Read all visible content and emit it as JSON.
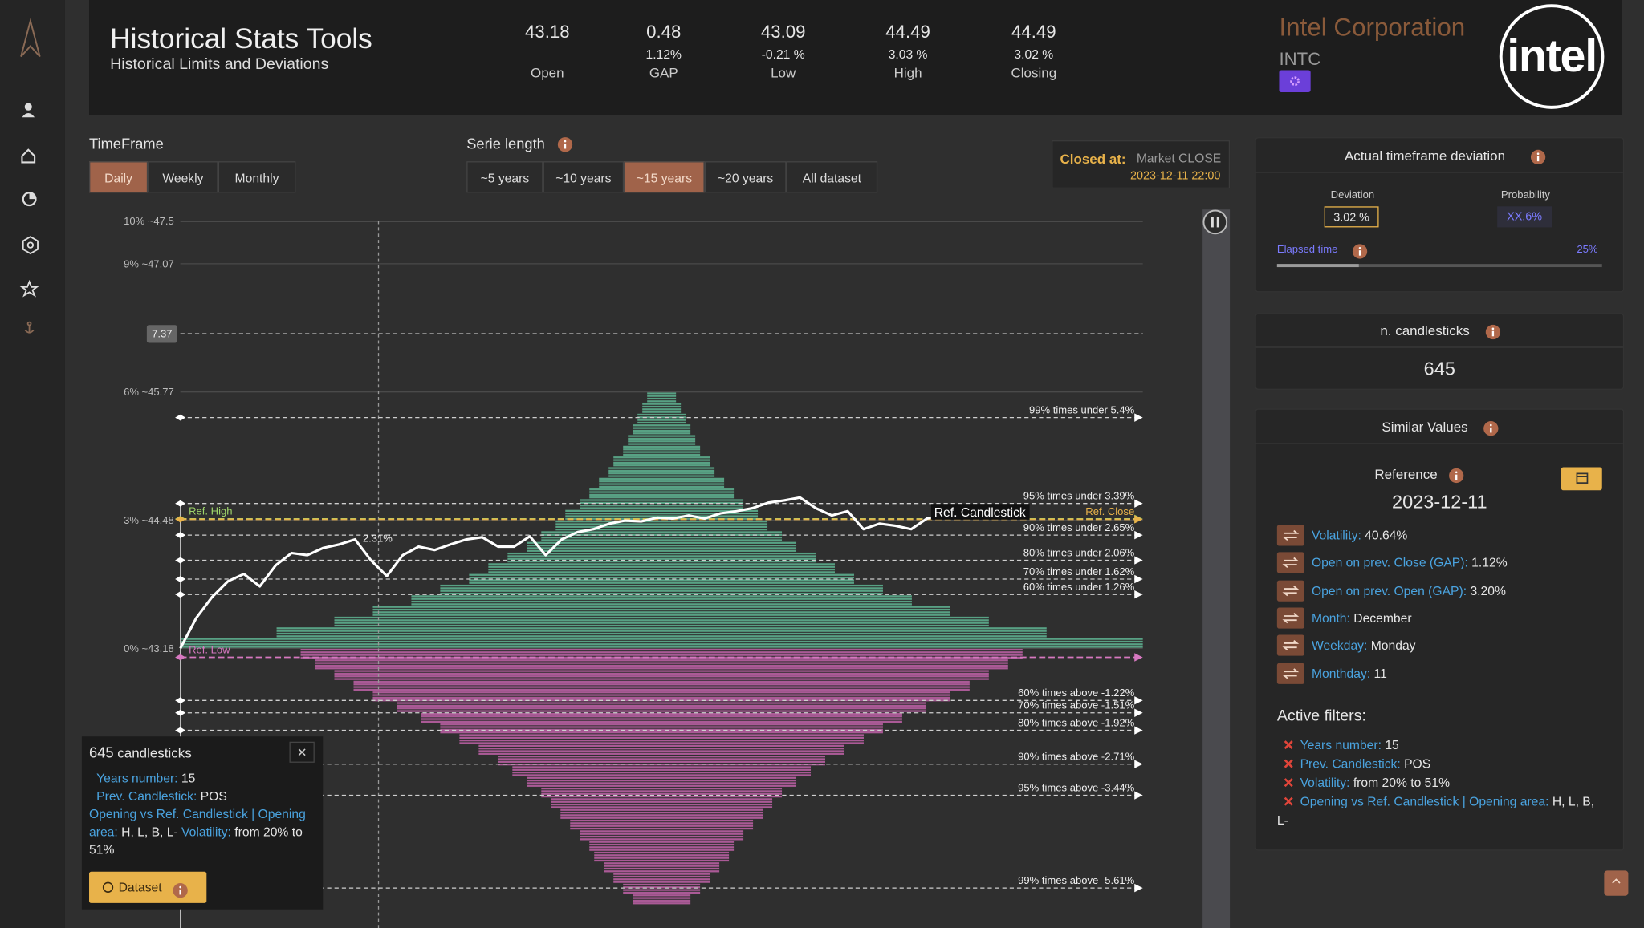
{
  "header": {
    "title": "Historical Stats Tools",
    "subtitle": "Historical Limits and Deviations"
  },
  "stats": [
    {
      "value": "43.18",
      "label": "Open"
    },
    {
      "value": "0.48",
      "change": "1.12%",
      "label": "GAP"
    },
    {
      "value": "43.09",
      "change": "-0.21 %",
      "label": "Low"
    },
    {
      "value": "44.49",
      "change": "3.03 %",
      "label": "High"
    },
    {
      "value": "44.49",
      "change": "3.02 %",
      "label": "Closing"
    }
  ],
  "company": {
    "name": "Intel Corporation",
    "ticker": "INTC",
    "logo": "intel"
  },
  "timeframe": {
    "label": "TimeFrame",
    "options": [
      "Daily",
      "Weekly",
      "Monthly"
    ],
    "active_index": 0
  },
  "serie_length": {
    "label": "Serie length",
    "options": [
      "~5 years",
      "~10 years",
      "~15 years",
      "~20 years",
      "All dataset"
    ],
    "active_index": 2
  },
  "closed": {
    "label": "Closed at:",
    "value": "Market CLOSE",
    "datetime": "2023-12-11 22:00"
  },
  "chart_data": {
    "type": "line",
    "ylim": [
      -6.55,
      10
    ],
    "yticks": [
      {
        "value": 10,
        "label": "10% ~47.5"
      },
      {
        "value": 9,
        "label": "9% ~47.07"
      },
      {
        "value": 6,
        "label": "6% ~45.77"
      },
      {
        "value": 3,
        "label": "3% ~44.48"
      },
      {
        "value": 0,
        "label": "0% ~43.18"
      }
    ],
    "grid": true,
    "cursor": 7.37,
    "line": {
      "color": "#ffffff",
      "values": [
        0,
        0.71,
        1.2,
        1.57,
        1.74,
        1.45,
        1.94,
        2.23,
        2.18,
        2.35,
        2.43,
        2.55,
        2.06,
        1.69,
        2.18,
        2.38,
        2.3,
        2.43,
        2.55,
        2.6,
        2.38,
        2.38,
        2.62,
        2.18,
        2.55,
        2.72,
        2.79,
        2.92,
        2.99,
        2.97,
        3.06,
        3.04,
        3.11,
        3.04,
        3.16,
        3.21,
        3.28,
        3.41,
        3.46,
        3.53,
        3.28,
        3.11,
        3.21,
        2.79,
        2.92,
        2.87,
        2.79,
        3.04,
        3.11,
        3.06,
        3.21,
        3.28,
        3.33
      ]
    },
    "histogram": {
      "xlim": [
        0,
        100
      ],
      "up": {
        "color": "#5fb593",
        "bins": [
          0,
          0.25,
          0.5,
          0.75,
          1,
          1.25,
          1.5,
          1.75,
          2,
          2.25,
          2.5,
          2.75,
          3,
          3.25,
          3.5,
          3.75,
          4,
          4.25,
          4.5,
          4.75,
          5,
          5.25,
          5.5,
          5.75,
          6
        ],
        "counts": [
          100,
          80,
          68,
          60,
          52,
          46,
          40,
          36,
          32,
          28,
          25,
          22,
          20,
          17,
          15,
          13,
          11,
          10,
          8,
          7,
          6,
          5,
          4,
          3
        ]
      },
      "down": {
        "color": "#c062a8",
        "bins": [
          0,
          -0.25,
          -0.5,
          -0.75,
          -1,
          -1.25,
          -1.5,
          -1.75,
          -2,
          -2.25,
          -2.5,
          -2.75,
          -3,
          -3.25,
          -3.5,
          -3.75,
          -4,
          -4.25,
          -4.5,
          -4.75,
          -5,
          -5.25,
          -5.5,
          -5.75,
          -6
        ],
        "counts": [
          75,
          72,
          68,
          64,
          60,
          55,
          50,
          46,
          42,
          38,
          34,
          31,
          28,
          25,
          23,
          21,
          19,
          17,
          15,
          14,
          12,
          10,
          8,
          6
        ]
      }
    },
    "levels": [
      {
        "value": 5.4,
        "label": "99% times under 5.4%"
      },
      {
        "value": 3.39,
        "label": "95% times under 3.39%"
      },
      {
        "value": 2.65,
        "label": "90% times under 2.65%"
      },
      {
        "value": 2.06,
        "label": "80% times under 2.06%"
      },
      {
        "value": 1.62,
        "label": "70% times under 1.62%"
      },
      {
        "value": 1.26,
        "label": "60% times under 1.26%"
      },
      {
        "value": -1.22,
        "label": "60% times above -1.22%"
      },
      {
        "value": -1.51,
        "label": "70% times above -1.51%"
      },
      {
        "value": -1.92,
        "label": "80% times above -1.92%"
      },
      {
        "value": -2.71,
        "label": "90% times above -2.71%"
      },
      {
        "value": -3.44,
        "label": "95% times above -3.44%"
      },
      {
        "value": -5.61,
        "label": "99% times above -5.61%"
      }
    ],
    "ref_lines": [
      {
        "label": "Ref. High",
        "value": 3.03,
        "color": "#9fd66b"
      },
      {
        "label": "Ref. Close",
        "value": 3.02,
        "color": "#e8b24a"
      },
      {
        "label": "Ref. Low",
        "value": -0.21,
        "color": "#d678c0"
      }
    ],
    "annotations": [
      "2.31%",
      "Ref. Candlestick"
    ]
  },
  "deviation": {
    "title": "Actual timeframe deviation",
    "deviation_label": "Deviation",
    "deviation": "3.02 %",
    "probability_label": "Probability",
    "probability": "XX.6%",
    "elapsed_label": "Elapsed time",
    "elapsed": {
      "value": 25,
      "label": "25%"
    }
  },
  "candlesticks": {
    "title": "n. candlesticks",
    "value": 645
  },
  "similar": {
    "title": "Similar Values",
    "reference_label": "Reference",
    "reference_date": "2023-12-11",
    "items": [
      {
        "key": "Volatility:",
        "value": "40.64%"
      },
      {
        "key": "Open on prev. Close (GAP):",
        "value": "1.12%"
      },
      {
        "key": "Open on prev. Open (GAP):",
        "value": "3.20%"
      },
      {
        "key": "Month:",
        "value": "December"
      },
      {
        "key": "Weekday:",
        "value": "Monday"
      },
      {
        "key": "Monthday:",
        "value": "11"
      }
    ],
    "filters_title": "Active filters:",
    "filters": [
      {
        "key": "Years number:",
        "value": "15"
      },
      {
        "key": "Prev. Candlestick:",
        "value": "POS"
      },
      {
        "key": "Volatility:",
        "value": "from 20% to 51%"
      },
      {
        "key": "Opening vs Ref. Candlestick | Opening area:",
        "value": "H, L, B, L-"
      }
    ]
  },
  "tooltip": {
    "count_label": "candlesticks",
    "button": "Dataset"
  }
}
